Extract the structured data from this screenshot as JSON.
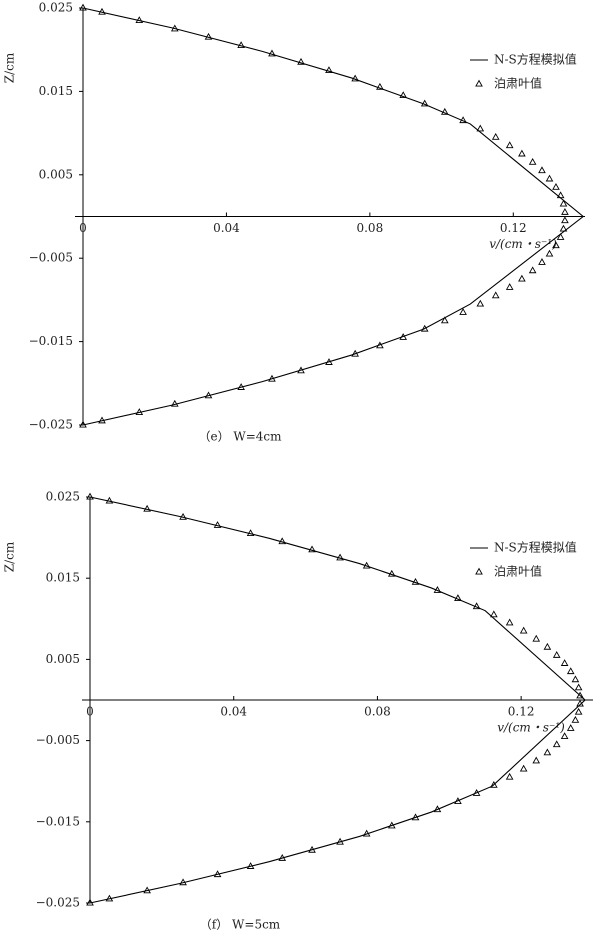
{
  "chart_data": [
    {
      "type": "line",
      "caption": "（e） W=4cm",
      "xlabel": "v/(cm・s⁻¹)",
      "ylabel": "Z/cm",
      "xlim": [
        0,
        0.14
      ],
      "xticks": [
        0,
        0.04,
        0.08,
        0.12
      ],
      "ylim": [
        -0.025,
        0.025
      ],
      "yticks": [
        0.025,
        0.015,
        0.005,
        {
          "value": -0.005,
          "label": "−0.005"
        },
        {
          "value": -0.015,
          "label": "−0.015"
        },
        {
          "value": -0.025,
          "label": "−0.025"
        }
      ],
      "series": [
        {
          "name": "N-S方程模拟值",
          "color": "#000000",
          "marker": "line",
          "x": [
            0,
            0.025,
            0.05,
            0.075,
            0.095,
            0.108,
            0.1395,
            0.108,
            0.095,
            0.075,
            0.05,
            0.025,
            0
          ],
          "y": [
            0.025,
            0.0226,
            0.0198,
            0.0166,
            0.0135,
            0.0111,
            0,
            -0.0105,
            -0.0135,
            -0.0166,
            -0.0198,
            -0.0226,
            -0.025
          ]
        },
        {
          "name": "泊肃叶值",
          "color": "#000000",
          "marker": "triangle",
          "x": [
            0,
            0.0053,
            0.0157,
            0.0256,
            0.035,
            0.0441,
            0.0527,
            0.0608,
            0.0686,
            0.0759,
            0.0828,
            0.0893,
            0.0953,
            0.1009,
            0.106,
            0.1108,
            0.1151,
            0.119,
            0.1224,
            0.1254,
            0.128,
            0.1301,
            0.1319,
            0.1332,
            0.134,
            0.1344,
            0.1344,
            0.134,
            0.1332,
            0.1319,
            0.1301,
            0.128,
            0.1254,
            0.1224,
            0.119,
            0.1151,
            0.1108,
            0.106,
            0.1009,
            0.0953,
            0.0893,
            0.0828,
            0.0759,
            0.0686,
            0.0608,
            0.0527,
            0.0441,
            0.035,
            0.0256,
            0.0157,
            0.0053,
            0
          ],
          "y": [
            0.025,
            0.0245,
            0.0235,
            0.0225,
            0.0215,
            0.0205,
            0.0195,
            0.0185,
            0.0175,
            0.0165,
            0.0155,
            0.0145,
            0.0135,
            0.0125,
            0.0115,
            0.0105,
            0.0095,
            0.0085,
            0.0075,
            0.0065,
            0.0055,
            0.0045,
            0.0035,
            0.0025,
            0.0015,
            0.0005,
            -0.0005,
            -0.0015,
            -0.0025,
            -0.0035,
            -0.0045,
            -0.0055,
            -0.0065,
            -0.0075,
            -0.0085,
            -0.0095,
            -0.0105,
            -0.0115,
            -0.0125,
            -0.0135,
            -0.0145,
            -0.0155,
            -0.0165,
            -0.0175,
            -0.0185,
            -0.0195,
            -0.0205,
            -0.0215,
            -0.0225,
            -0.0235,
            -0.0245,
            -0.025
          ]
        }
      ]
    },
    {
      "type": "line",
      "caption": "（f） W=5cm",
      "xlabel": "v/(cm・s⁻¹)",
      "ylabel": "Z/cm",
      "xlim": [
        0,
        0.14
      ],
      "xticks": [
        0,
        0.04,
        0.08,
        0.12
      ],
      "ylim": [
        -0.025,
        0.025
      ],
      "yticks": [
        0.025,
        0.015,
        0.005,
        {
          "value": -0.005,
          "label": "−0.005"
        },
        {
          "value": -0.015,
          "label": "−0.015"
        },
        {
          "value": -0.025,
          "label": "−0.025"
        }
      ],
      "series": [
        {
          "name": "N-S方程模拟值",
          "color": "#000000",
          "marker": "line",
          "x": [
            0,
            0.025,
            0.05,
            0.075,
            0.095,
            0.11,
            0.1378,
            0.112,
            0.095,
            0.075,
            0.05,
            0.025,
            0
          ],
          "y": [
            0.025,
            0.0226,
            0.0199,
            0.0168,
            0.0138,
            0.011,
            0,
            -0.0106,
            -0.0138,
            -0.0168,
            -0.0199,
            -0.0226,
            -0.025
          ]
        },
        {
          "name": "泊肃叶值",
          "color": "#000000",
          "marker": "triangle",
          "x": [
            0,
            0.0054,
            0.0159,
            0.0259,
            0.0355,
            0.0447,
            0.0535,
            0.0618,
            0.0696,
            0.077,
            0.084,
            0.0906,
            0.0967,
            0.1024,
            0.1076,
            0.1124,
            0.1168,
            0.1207,
            0.1242,
            0.1273,
            0.1299,
            0.1321,
            0.1338,
            0.1351,
            0.136,
            0.1364,
            0.1364,
            0.136,
            0.1351,
            0.1338,
            0.1321,
            0.1299,
            0.1273,
            0.1242,
            0.1207,
            0.1168,
            0.1124,
            0.1076,
            0.1024,
            0.0967,
            0.0906,
            0.084,
            0.077,
            0.0696,
            0.0618,
            0.0535,
            0.0447,
            0.0355,
            0.0259,
            0.0159,
            0.0054,
            0
          ],
          "y": [
            0.025,
            0.0245,
            0.0235,
            0.0225,
            0.0215,
            0.0205,
            0.0195,
            0.0185,
            0.0175,
            0.0165,
            0.0155,
            0.0145,
            0.0135,
            0.0125,
            0.0115,
            0.0105,
            0.0095,
            0.0085,
            0.0075,
            0.0065,
            0.0055,
            0.0045,
            0.0035,
            0.0025,
            0.0015,
            0.0005,
            -0.0005,
            -0.0015,
            -0.0025,
            -0.0035,
            -0.0045,
            -0.0055,
            -0.0065,
            -0.0075,
            -0.0085,
            -0.0095,
            -0.0105,
            -0.0115,
            -0.0125,
            -0.0135,
            -0.0145,
            -0.0155,
            -0.0165,
            -0.0175,
            -0.0185,
            -0.0195,
            -0.0205,
            -0.0215,
            -0.0225,
            -0.0235,
            -0.0245,
            -0.025
          ]
        }
      ]
    }
  ]
}
